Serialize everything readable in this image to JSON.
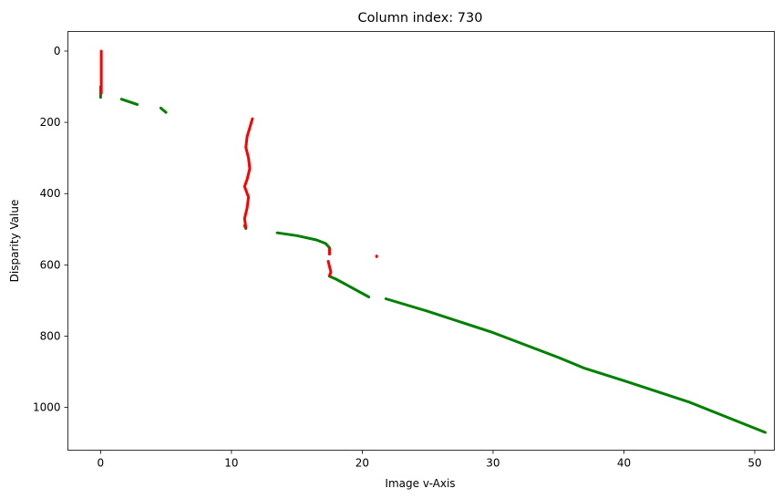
{
  "chart_data": {
    "type": "scatter",
    "title": "Column index: 730",
    "xlabel": "Image v-Axis",
    "ylabel": "Disparity Value",
    "xlim": [
      -2.5,
      51.5
    ],
    "ylim": [
      1120,
      -55
    ],
    "y_inverted": true,
    "grid": false,
    "x_ticks": [
      0,
      10,
      20,
      30,
      40,
      50
    ],
    "y_ticks": [
      0,
      200,
      400,
      600,
      800,
      1000
    ],
    "series": [
      {
        "color": "#008000",
        "segments": [
          [
            [
              0.0,
              100
            ],
            [
              0.0,
              130
            ]
          ],
          [
            [
              1.6,
              135
            ],
            [
              2.0,
              140
            ],
            [
              2.4,
              145
            ],
            [
              2.8,
              150
            ]
          ],
          [
            [
              4.6,
              160
            ],
            [
              5.0,
              172
            ]
          ],
          [
            [
              11.0,
              490
            ],
            [
              11.1,
              498
            ]
          ],
          [
            [
              13.5,
              510
            ],
            [
              15.0,
              518
            ],
            [
              16.5,
              530
            ],
            [
              17.2,
              540
            ],
            [
              17.5,
              552
            ]
          ],
          [
            [
              17.5,
              632
            ],
            [
              18.0,
              640
            ],
            [
              19.0,
              660
            ],
            [
              20.5,
              690
            ]
          ],
          [
            [
              21.8,
              695
            ],
            [
              25.0,
              730
            ],
            [
              30.0,
              790
            ],
            [
              35.0,
              860
            ],
            [
              37.0,
              890
            ],
            [
              40.0,
              925
            ],
            [
              45.0,
              985
            ],
            [
              50.8,
              1070
            ]
          ]
        ]
      },
      {
        "color": "#ff0000",
        "segments": [
          [
            [
              0.05,
              0
            ],
            [
              0.05,
              20
            ],
            [
              0.05,
              40
            ],
            [
              0.05,
              60
            ],
            [
              0.05,
              80
            ],
            [
              0.05,
              100
            ],
            [
              0.05,
              118
            ]
          ],
          [
            [
              11.6,
              190
            ],
            [
              11.4,
              215
            ],
            [
              11.2,
              240
            ],
            [
              11.1,
              270
            ],
            [
              11.3,
              300
            ],
            [
              11.4,
              330
            ],
            [
              11.2,
              360
            ],
            [
              11.0,
              380
            ],
            [
              11.3,
              410
            ],
            [
              11.2,
              440
            ],
            [
              11.0,
              470
            ],
            [
              11.1,
              495
            ]
          ],
          [
            [
              17.5,
              555
            ],
            [
              17.5,
              570
            ]
          ],
          [
            [
              17.4,
              590
            ],
            [
              17.5,
              605
            ],
            [
              17.6,
              620
            ],
            [
              17.5,
              630
            ]
          ],
          [
            [
              21.1,
              575
            ],
            [
              21.1,
              577
            ]
          ]
        ]
      }
    ]
  }
}
